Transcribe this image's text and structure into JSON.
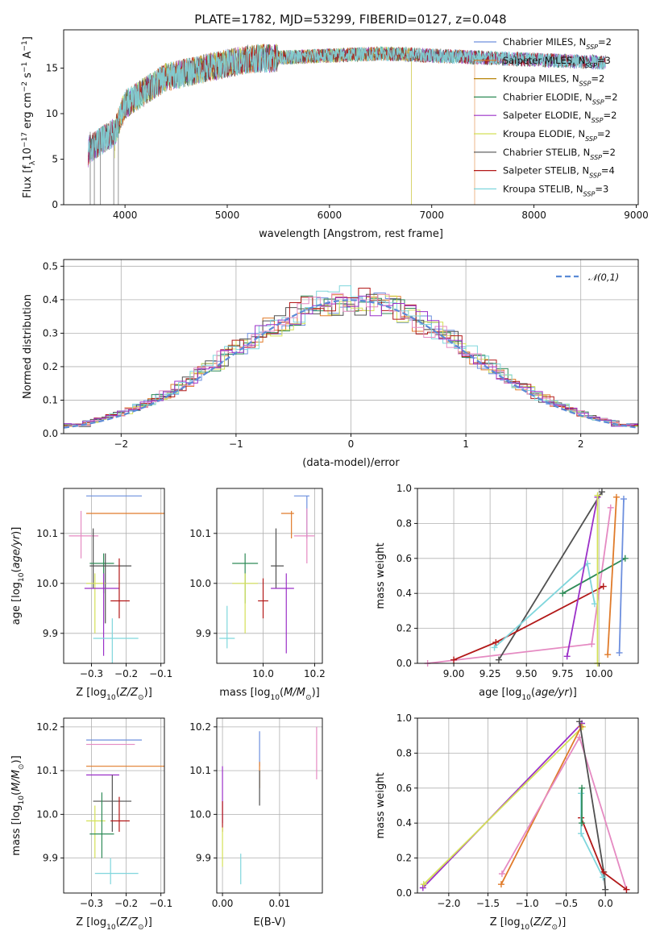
{
  "title": "PLATE=1782, MJD=53299, FIBERID=0127, z=0.048",
  "colors": [
    "#6d8fde",
    "#e07b2a",
    "#b8860b",
    "#2e8b57",
    "#9b30c8",
    "#d4e157",
    "#505050",
    "#b21818",
    "#7fd6dc",
    "#e58ac2"
  ],
  "chart_data": [
    {
      "type": "line",
      "id": "spectrum",
      "xlabel": "wavelength [Angstrom, rest frame]",
      "ylabel": "Flux [f_λ10^-17 erg cm^-2 s^-1 A^-1]",
      "xlim": [
        3400,
        9020
      ],
      "ylim": [
        0,
        19.2
      ],
      "xticks": [
        4000,
        5000,
        6000,
        7000,
        8000,
        9000
      ],
      "yticks": [
        0,
        5,
        10,
        15
      ],
      "grid": false,
      "legend_position": "top-right",
      "data_range": [
        3640,
        8700
      ],
      "series": [
        {
          "name": "Chabrier MILES",
          "nssp": "2",
          "color": "#6d8fde",
          "start": 3640,
          "end": 8700
        },
        {
          "name": "Salpeter MILES",
          "nssp": "3",
          "color": "#e07b2a",
          "start": 3640,
          "end": 7420
        },
        {
          "name": "Kroupa MILES",
          "nssp": "2",
          "color": "#b8860b",
          "start": 3900,
          "end": 6800
        },
        {
          "name": "Chabrier ELODIE",
          "nssp": "2",
          "color": "#2e8b57",
          "start": 3640,
          "end": 8700
        },
        {
          "name": "Salpeter ELODIE",
          "nssp": "2",
          "color": "#9b30c8",
          "start": 3640,
          "end": 8700
        },
        {
          "name": "Kroupa ELODIE",
          "nssp": "2",
          "color": "#d4e157",
          "start": 3900,
          "end": 6800
        },
        {
          "name": "Chabrier STELIB",
          "nssp": "2",
          "color": "#505050",
          "start": 3640,
          "end": 8700
        },
        {
          "name": "Salpeter STELIB",
          "nssp": "4",
          "color": "#b21818",
          "start": 3640,
          "end": 8700
        },
        {
          "name": "Kroupa STELIB",
          "nssp": "3",
          "color": "#7fd6dc",
          "start": 3640,
          "end": 8700
        }
      ]
    },
    {
      "type": "bar",
      "id": "residual-hist",
      "xlabel": "(data-model)/error",
      "ylabel": "Normed distribution",
      "xlim": [
        -2.5,
        2.5
      ],
      "ylim": [
        0,
        0.52
      ],
      "xticks": [
        -2,
        -1,
        0,
        1,
        2
      ],
      "yticks": [
        0.0,
        0.1,
        0.2,
        0.3,
        0.4,
        0.5
      ],
      "grid": true,
      "legend_position": "top-right",
      "reference_curve": {
        "name": "𝒩(0,1)",
        "mean": 0,
        "sigma": 1,
        "color": "#5b8bd6"
      },
      "bin_width": 0.1,
      "series_colors": [
        "#6d8fde",
        "#e07b2a",
        "#2e8b57",
        "#d4e157",
        "#505050",
        "#b21818",
        "#7fd6dc",
        "#e58ac2",
        "#9b30c8"
      ]
    },
    {
      "type": "scatter",
      "id": "age-vs-Z",
      "xlabel": "Z [log10(Z/Z⊙)]",
      "ylabel": "age  [log10(age/yr)]",
      "xlim": [
        -0.38,
        -0.09
      ],
      "ylim": [
        9.84,
        10.19
      ],
      "xticks": [
        -0.3,
        -0.2,
        -0.1
      ],
      "yticks": [
        9.9,
        10.0,
        10.1
      ],
      "grid": true,
      "points": [
        {
          "x": -0.235,
          "xlo": -0.315,
          "xhi": -0.155,
          "y": 10.175,
          "ylo": 10.175,
          "yhi": 10.175,
          "color": "#6d8fde"
        },
        {
          "x": -0.21,
          "xlo": -0.315,
          "xhi": -0.09,
          "y": 10.14,
          "ylo": 10.14,
          "yhi": 10.14,
          "color": "#e07b2a"
        },
        {
          "x": -0.33,
          "xlo": -0.365,
          "xhi": -0.28,
          "y": 10.095,
          "ylo": 10.05,
          "yhi": 10.145,
          "color": "#e58ac2"
        },
        {
          "x": -0.295,
          "xlo": -0.295,
          "xhi": -0.295,
          "y": 10.06,
          "ylo": 9.99,
          "yhi": 10.11,
          "color": "#505050"
        },
        {
          "x": -0.265,
          "xlo": -0.305,
          "xhi": -0.235,
          "y": 10.04,
          "ylo": 9.98,
          "yhi": 10.06,
          "color": "#2e8b57"
        },
        {
          "x": -0.26,
          "xlo": -0.305,
          "xhi": -0.185,
          "y": 10.035,
          "ylo": 9.92,
          "yhi": 10.06,
          "color": "#505050"
        },
        {
          "x": -0.29,
          "xlo": -0.315,
          "xhi": -0.26,
          "y": 10.0,
          "ylo": 9.9,
          "yhi": 10.02,
          "color": "#d4e157"
        },
        {
          "x": -0.265,
          "xlo": -0.32,
          "xhi": -0.22,
          "y": 9.99,
          "ylo": 9.855,
          "yhi": 10.02,
          "color": "#9b30c8"
        },
        {
          "x": -0.22,
          "xlo": -0.245,
          "xhi": -0.19,
          "y": 9.965,
          "ylo": 9.93,
          "yhi": 10.05,
          "color": "#b21818"
        },
        {
          "x": -0.24,
          "xlo": -0.295,
          "xhi": -0.165,
          "y": 9.89,
          "ylo": 9.83,
          "yhi": 9.93,
          "color": "#7fd6dc"
        }
      ]
    },
    {
      "type": "scatter",
      "id": "age-vs-mass",
      "xlabel": "mass [log10(M/M⊙)]",
      "ylabel": "",
      "xlim": [
        9.82,
        10.23
      ],
      "ylim": [
        9.84,
        10.19
      ],
      "xticks": [
        10.0,
        10.2
      ],
      "yticks": [
        9.9,
        10.0,
        10.1
      ],
      "grid": true,
      "points": [
        {
          "x": 10.17,
          "xlo": 10.12,
          "xhi": 10.18,
          "y": 10.175,
          "ylo": 10.09,
          "yhi": 10.175,
          "color": "#6d8fde"
        },
        {
          "x": 10.11,
          "xlo": 10.07,
          "xhi": 10.12,
          "y": 10.14,
          "ylo": 10.09,
          "yhi": 10.145,
          "color": "#e07b2a"
        },
        {
          "x": 10.17,
          "xlo": 10.12,
          "xhi": 10.2,
          "y": 10.095,
          "ylo": 10.04,
          "yhi": 10.15,
          "color": "#e58ac2"
        },
        {
          "x": 10.05,
          "xlo": 10.03,
          "xhi": 10.08,
          "y": 10.035,
          "ylo": 9.99,
          "yhi": 10.11,
          "color": "#505050"
        },
        {
          "x": 9.93,
          "xlo": 9.88,
          "xhi": 9.98,
          "y": 10.04,
          "ylo": 9.96,
          "yhi": 10.06,
          "color": "#2e8b57"
        },
        {
          "x": 9.93,
          "xlo": 9.88,
          "xhi": 9.98,
          "y": 10.0,
          "ylo": 9.9,
          "yhi": 10.02,
          "color": "#d4e157"
        },
        {
          "x": 10.09,
          "xlo": 10.03,
          "xhi": 10.12,
          "y": 9.99,
          "ylo": 9.86,
          "yhi": 10.02,
          "color": "#9b30c8"
        },
        {
          "x": 10.0,
          "xlo": 9.98,
          "xhi": 10.02,
          "y": 9.965,
          "ylo": 9.93,
          "yhi": 10.01,
          "color": "#b21818"
        },
        {
          "x": 9.86,
          "xlo": 9.83,
          "xhi": 9.89,
          "y": 9.89,
          "ylo": 9.87,
          "yhi": 9.955,
          "color": "#7fd6dc"
        }
      ]
    },
    {
      "type": "line",
      "id": "massweight-vs-age",
      "xlabel": "age  [log10(age/yr)]",
      "ylabel": "mass weight",
      "xlim": [
        8.75,
        10.27
      ],
      "ylim": [
        0,
        1
      ],
      "xticks": [
        9.0,
        9.25,
        9.5,
        9.75,
        10.0
      ],
      "yticks": [
        0.0,
        0.2,
        0.4,
        0.6,
        0.8,
        1.0
      ],
      "grid": true,
      "series": [
        {
          "color": "#e58ac2",
          "x": [
            8.82,
            9.95,
            10.08
          ],
          "y": [
            0.0,
            0.11,
            0.89
          ]
        },
        {
          "color": "#505050",
          "x": [
            9.31,
            10.02
          ],
          "y": [
            0.02,
            0.98
          ]
        },
        {
          "color": "#b21818",
          "x": [
            9.0,
            9.29,
            10.03
          ],
          "y": [
            0.02,
            0.12,
            0.44
          ]
        },
        {
          "color": "#7fd6dc",
          "x": [
            9.28,
            9.92,
            9.97
          ],
          "y": [
            0.09,
            0.57,
            0.34
          ]
        },
        {
          "color": "#2e8b57",
          "x": [
            9.75,
            10.18
          ],
          "y": [
            0.4,
            0.6
          ]
        },
        {
          "color": "#9b30c8",
          "x": [
            9.78,
            9.99
          ],
          "y": [
            0.04,
            0.95
          ]
        },
        {
          "color": "#d4e157",
          "x": [
            9.99,
            9.99
          ],
          "y": [
            0.0,
            0.96
          ]
        },
        {
          "color": "#e07b2a",
          "x": [
            10.06,
            10.12
          ],
          "y": [
            0.05,
            0.95
          ]
        },
        {
          "color": "#6d8fde",
          "x": [
            10.14,
            10.17
          ],
          "y": [
            0.06,
            0.94
          ]
        }
      ]
    },
    {
      "type": "scatter",
      "id": "mass-vs-Z",
      "xlabel": "Z [log10(Z/Z⊙)]",
      "ylabel": "mass [log10(M/M⊙)]",
      "xlim": [
        -0.38,
        -0.09
      ],
      "ylim": [
        9.82,
        10.22
      ],
      "xticks": [
        -0.3,
        -0.2,
        -0.1
      ],
      "yticks": [
        9.9,
        10.0,
        10.1,
        10.2
      ],
      "grid": true,
      "points": [
        {
          "x": -0.23,
          "xlo": -0.315,
          "xhi": -0.155,
          "y": 10.17,
          "ylo": 10.17,
          "yhi": 10.17,
          "color": "#6d8fde"
        },
        {
          "x": -0.23,
          "xlo": -0.315,
          "xhi": -0.175,
          "y": 10.16,
          "ylo": 10.16,
          "yhi": 10.16,
          "color": "#e58ac2"
        },
        {
          "x": -0.2,
          "xlo": -0.315,
          "xhi": -0.09,
          "y": 10.11,
          "ylo": 10.11,
          "yhi": 10.11,
          "color": "#e07b2a"
        },
        {
          "x": -0.265,
          "xlo": -0.315,
          "xhi": -0.22,
          "y": 10.09,
          "ylo": 10.09,
          "yhi": 10.09,
          "color": "#9b30c8"
        },
        {
          "x": -0.24,
          "xlo": -0.295,
          "xhi": -0.185,
          "y": 10.03,
          "ylo": 9.96,
          "yhi": 10.09,
          "color": "#505050"
        },
        {
          "x": -0.22,
          "xlo": -0.245,
          "xhi": -0.19,
          "y": 9.985,
          "ylo": 9.96,
          "yhi": 10.04,
          "color": "#b21818"
        },
        {
          "x": -0.29,
          "xlo": -0.315,
          "xhi": -0.26,
          "y": 9.985,
          "ylo": 9.9,
          "yhi": 10.02,
          "color": "#d4e157"
        },
        {
          "x": -0.27,
          "xlo": -0.305,
          "xhi": -0.235,
          "y": 9.955,
          "ylo": 9.9,
          "yhi": 10.05,
          "color": "#2e8b57"
        },
        {
          "x": -0.245,
          "xlo": -0.29,
          "xhi": -0.165,
          "y": 9.865,
          "ylo": 9.84,
          "yhi": 9.9,
          "color": "#7fd6dc"
        }
      ]
    },
    {
      "type": "scatter",
      "id": "mass-vs-EBV",
      "xlabel": "E(B-V)",
      "ylabel": "",
      "xlim": [
        -0.001,
        0.0175
      ],
      "ylim": [
        9.82,
        10.22
      ],
      "xticks": [
        0.0,
        0.01
      ],
      "yticks": [
        9.9,
        10.0,
        10.1,
        10.2
      ],
      "grid": true,
      "points": [
        {
          "x": 0.0165,
          "xlo": 0.0165,
          "xhi": 0.0165,
          "y": 10.15,
          "ylo": 10.08,
          "yhi": 10.2,
          "color": "#e58ac2"
        },
        {
          "x": 0.0065,
          "xlo": 0.0065,
          "xhi": 0.0065,
          "y": 10.17,
          "ylo": 10.11,
          "yhi": 10.19,
          "color": "#6d8fde"
        },
        {
          "x": 0.0065,
          "xlo": 0.0065,
          "xhi": 0.0065,
          "y": 10.1,
          "ylo": 10.06,
          "yhi": 10.12,
          "color": "#e07b2a"
        },
        {
          "x": 0.0065,
          "xlo": 0.0065,
          "xhi": 0.0065,
          "y": 10.05,
          "ylo": 10.02,
          "yhi": 10.1,
          "color": "#505050"
        },
        {
          "x": 0.0,
          "xlo": 0.0,
          "xhi": 0.0,
          "y": 10.05,
          "ylo": 9.98,
          "yhi": 10.11,
          "color": "#9b30c8"
        },
        {
          "x": 0.0,
          "xlo": 0.0,
          "xhi": 0.0,
          "y": 10.0,
          "ylo": 9.96,
          "yhi": 10.03,
          "color": "#b21818"
        },
        {
          "x": 0.0,
          "xlo": 0.0,
          "xhi": 0.0,
          "y": 9.93,
          "ylo": 9.88,
          "yhi": 9.97,
          "color": "#d4e157"
        },
        {
          "x": 0.0032,
          "xlo": 0.0032,
          "xhi": 0.0032,
          "y": 9.86,
          "ylo": 9.84,
          "yhi": 9.91,
          "color": "#7fd6dc"
        }
      ]
    },
    {
      "type": "line",
      "id": "massweight-vs-Z",
      "xlabel": "Z [log10(Z/Z⊙)]",
      "ylabel": "mass weight",
      "xlim": [
        -2.4,
        0.42
      ],
      "ylim": [
        0,
        1
      ],
      "xticks": [
        -2.0,
        -1.5,
        -1.0,
        -0.5,
        0.0
      ],
      "yticks": [
        0.0,
        0.2,
        0.4,
        0.6,
        0.8,
        1.0
      ],
      "grid": true,
      "series": [
        {
          "color": "#9b30c8",
          "x": [
            -2.33,
            -0.3
          ],
          "y": [
            0.03,
            0.97
          ]
        },
        {
          "color": "#d4e157",
          "x": [
            -2.32,
            -0.29
          ],
          "y": [
            0.05,
            0.95
          ]
        },
        {
          "color": "#e07b2a",
          "x": [
            -1.33,
            -0.31
          ],
          "y": [
            0.05,
            0.95
          ]
        },
        {
          "color": "#e58ac2",
          "x": [
            -1.32,
            -0.33,
            0.27
          ],
          "y": [
            0.11,
            0.89,
            0.02
          ]
        },
        {
          "color": "#505050",
          "x": [
            -0.33,
            -0.02,
            0.0
          ],
          "y": [
            0.98,
            0.12,
            0.02
          ]
        },
        {
          "color": "#b21818",
          "x": [
            -0.31,
            -0.03,
            0.27
          ],
          "y": [
            0.43,
            0.12,
            0.02
          ]
        },
        {
          "color": "#7fd6dc",
          "x": [
            -0.31,
            -0.31,
            -0.03
          ],
          "y": [
            0.57,
            0.34,
            0.09
          ]
        },
        {
          "color": "#2e8b57",
          "x": [
            -0.3,
            -0.3
          ],
          "y": [
            0.4,
            0.6
          ]
        }
      ]
    }
  ]
}
